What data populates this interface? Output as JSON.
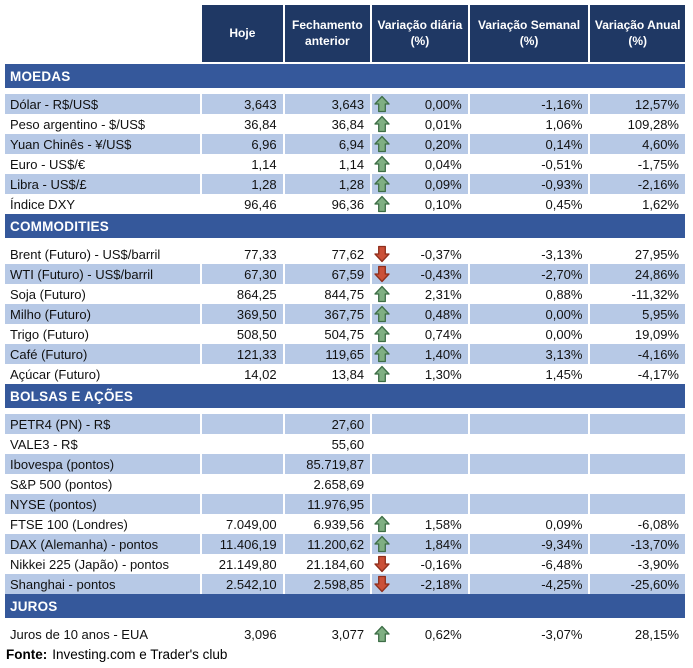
{
  "header": {
    "columns": [
      "Hoje",
      "Fechamento anterior",
      "Variação diária (%)",
      "Variação Semanal (%)",
      "Variação Anual (%)"
    ]
  },
  "sections": [
    {
      "title": "MOEDAS",
      "rows": [
        {
          "label": "Dólar - R$/US$",
          "hoje": "3,643",
          "prev": "3,643",
          "arrow": "up",
          "daily": "0,00%",
          "weekly": "-1,16%",
          "annual": "12,57%",
          "shaded": true
        },
        {
          "label": "Peso argentino - $/US$",
          "hoje": "36,84",
          "prev": "36,84",
          "arrow": "up",
          "daily": "0,01%",
          "weekly": "1,06%",
          "annual": "109,28%",
          "shaded": false
        },
        {
          "label": "Yuan Chinês - ¥/US$",
          "hoje": "6,96",
          "prev": "6,94",
          "arrow": "up",
          "daily": "0,20%",
          "weekly": "0,14%",
          "annual": "4,60%",
          "shaded": true
        },
        {
          "label": "Euro - US$/€",
          "hoje": "1,14",
          "prev": "1,14",
          "arrow": "up",
          "daily": "0,04%",
          "weekly": "-0,51%",
          "annual": "-1,75%",
          "shaded": false
        },
        {
          "label": "Libra - US$/£",
          "hoje": "1,28",
          "prev": "1,28",
          "arrow": "up",
          "daily": "0,09%",
          "weekly": "-0,93%",
          "annual": "-2,16%",
          "shaded": true
        },
        {
          "label": "Índice DXY",
          "hoje": "96,46",
          "prev": "96,36",
          "arrow": "up",
          "daily": "0,10%",
          "weekly": "0,45%",
          "annual": "1,62%",
          "shaded": false
        }
      ]
    },
    {
      "title": "COMMODITIES",
      "rows": [
        {
          "label": "Brent (Futuro) - US$/barril",
          "hoje": "77,33",
          "prev": "77,62",
          "arrow": "down",
          "daily": "-0,37%",
          "weekly": "-3,13%",
          "annual": "27,95%",
          "shaded": false
        },
        {
          "label": "WTI (Futuro) - US$/barril",
          "hoje": "67,30",
          "prev": "67,59",
          "arrow": "down",
          "daily": "-0,43%",
          "weekly": "-2,70%",
          "annual": "24,86%",
          "shaded": true
        },
        {
          "label": "Soja (Futuro)",
          "hoje": "864,25",
          "prev": "844,75",
          "arrow": "up",
          "daily": "2,31%",
          "weekly": "0,88%",
          "annual": "-11,32%",
          "shaded": false
        },
        {
          "label": "Milho (Futuro)",
          "hoje": "369,50",
          "prev": "367,75",
          "arrow": "up",
          "daily": "0,48%",
          "weekly": "0,00%",
          "annual": "5,95%",
          "shaded": true
        },
        {
          "label": "Trigo (Futuro)",
          "hoje": "508,50",
          "prev": "504,75",
          "arrow": "up",
          "daily": "0,74%",
          "weekly": "0,00%",
          "annual": "19,09%",
          "shaded": false
        },
        {
          "label": "Café (Futuro)",
          "hoje": "121,33",
          "prev": "119,65",
          "arrow": "up",
          "daily": "1,40%",
          "weekly": "3,13%",
          "annual": "-4,16%",
          "shaded": true
        },
        {
          "label": "Açúcar (Futuro)",
          "hoje": "14,02",
          "prev": "13,84",
          "arrow": "up",
          "daily": "1,30%",
          "weekly": "1,45%",
          "annual": "-4,17%",
          "shaded": false
        }
      ]
    },
    {
      "title": "BOLSAS E AÇÕES",
      "rows": [
        {
          "label": "PETR4 (PN) - R$",
          "hoje": "",
          "prev": "27,60",
          "arrow": "",
          "daily": "",
          "weekly": "",
          "annual": "",
          "shaded": true
        },
        {
          "label": "VALE3 - R$",
          "hoje": "",
          "prev": "55,60",
          "arrow": "",
          "daily": "",
          "weekly": "",
          "annual": "",
          "shaded": false
        },
        {
          "label": "Ibovespa (pontos)",
          "hoje": "",
          "prev": "85.719,87",
          "arrow": "",
          "daily": "",
          "weekly": "",
          "annual": "",
          "shaded": true
        },
        {
          "label": "S&P 500 (pontos)",
          "hoje": "",
          "prev": "2.658,69",
          "arrow": "",
          "daily": "",
          "weekly": "",
          "annual": "",
          "shaded": false
        },
        {
          "label": "NYSE (pontos)",
          "hoje": "",
          "prev": "11.976,95",
          "arrow": "",
          "daily": "",
          "weekly": "",
          "annual": "",
          "shaded": true
        },
        {
          "label": "FTSE 100 (Londres)",
          "hoje": "7.049,00",
          "prev": "6.939,56",
          "arrow": "up",
          "daily": "1,58%",
          "weekly": "0,09%",
          "annual": "-6,08%",
          "shaded": false
        },
        {
          "label": "DAX (Alemanha) - pontos",
          "hoje": "11.406,19",
          "prev": "11.200,62",
          "arrow": "up",
          "daily": "1,84%",
          "weekly": "-9,34%",
          "annual": "-13,70%",
          "shaded": true
        },
        {
          "label": "Nikkei 225 (Japão) - pontos",
          "hoje": "21.149,80",
          "prev": "21.184,60",
          "arrow": "down",
          "daily": "-0,16%",
          "weekly": "-6,48%",
          "annual": "-3,90%",
          "shaded": false
        },
        {
          "label": "Shanghai - pontos",
          "hoje": "2.542,10",
          "prev": "2.598,85",
          "arrow": "down",
          "daily": "-2,18%",
          "weekly": "-4,25%",
          "annual": "-25,60%",
          "shaded": true
        }
      ]
    },
    {
      "title": "JUROS",
      "rows": [
        {
          "label": "Juros de 10 anos - EUA",
          "hoje": "3,096",
          "prev": "3,077",
          "arrow": "up",
          "daily": "0,62%",
          "weekly": "-3,07%",
          "annual": "28,15%",
          "shaded": false
        }
      ]
    }
  ],
  "footer": {
    "label": "Fonte:",
    "text": "Investing.com e Trader's club"
  },
  "icons": {
    "up": "up-arrow-icon",
    "down": "down-arrow-icon"
  },
  "colors": {
    "header_navy": "#1F3864",
    "section_blue": "#35589B",
    "row_shaded_blue": "#B7C9E6",
    "arrow_up_fill": "#7FAF82",
    "arrow_up_stroke": "#3E6E47",
    "arrow_down_fill": "#CB5038",
    "arrow_down_stroke": "#8F2E1C"
  }
}
